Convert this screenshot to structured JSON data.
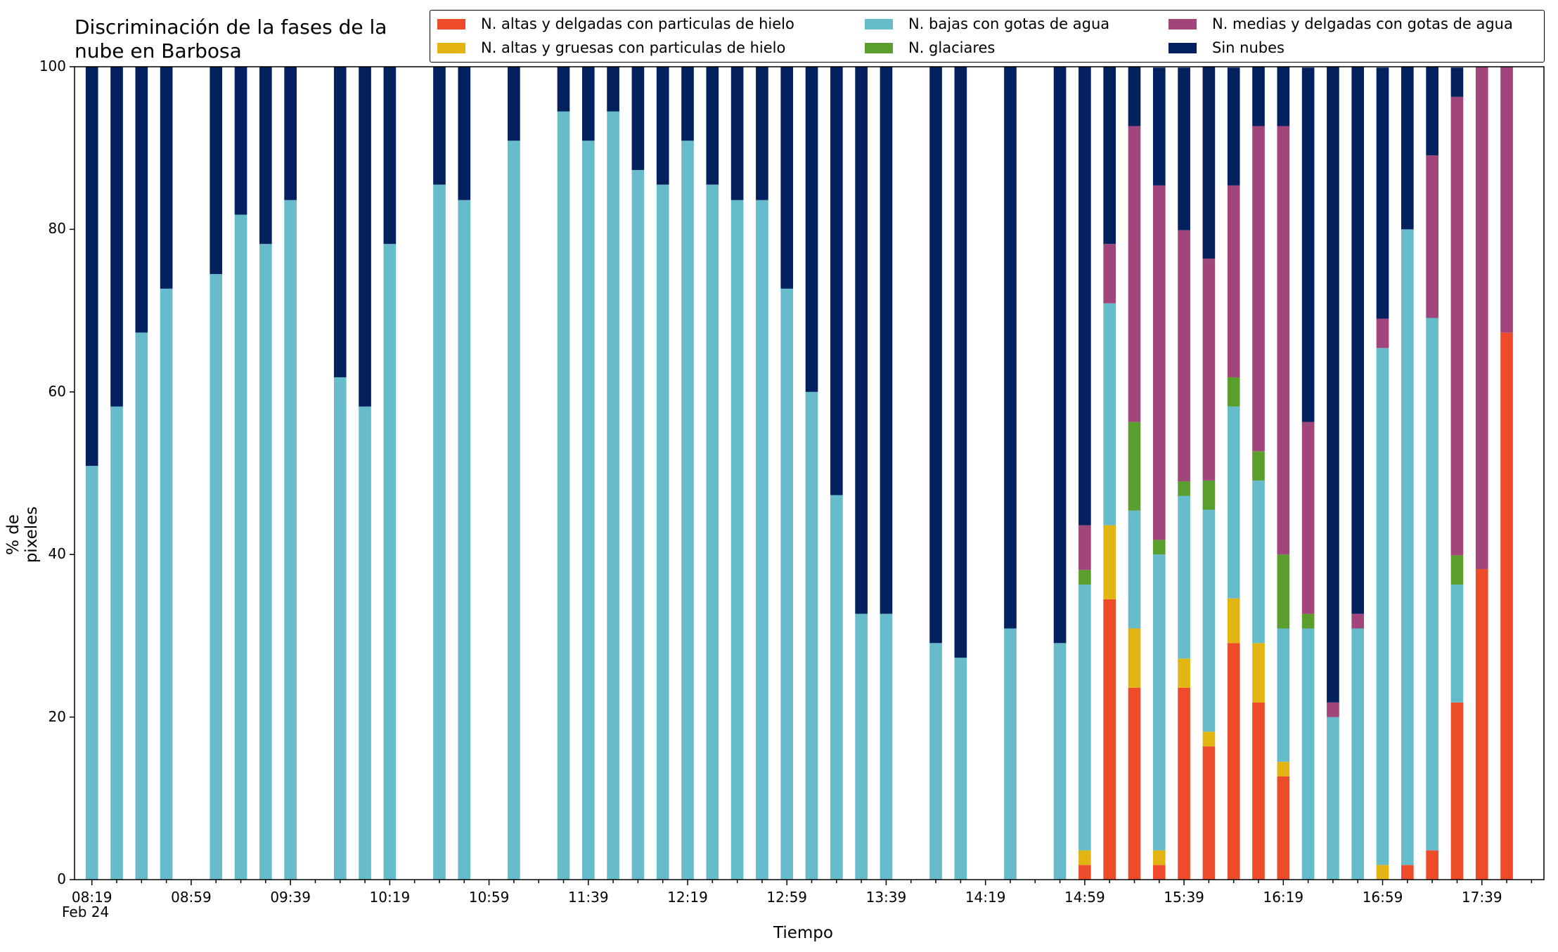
{
  "chart_data": {
    "type": "bar",
    "stacked": true,
    "title": "Discriminación de la fases de la nube en Barbosa",
    "title_lines": [
      "Discriminación de la fases de la",
      "nube en Barbosa"
    ],
    "xlabel": "Tiempo",
    "ylabel": "% de pixeles",
    "ylim": [
      0,
      100
    ],
    "yticks": [
      "0",
      "20",
      "40",
      "60",
      "80",
      "100"
    ],
    "xticks": [
      "08:19",
      "08:59",
      "09:39",
      "10:19",
      "10:59",
      "11:39",
      "12:19",
      "12:59",
      "13:39",
      "14:19",
      "14:59",
      "15:39",
      "16:19",
      "16:59",
      "17:39"
    ],
    "x_date_label": "Feb 24",
    "grid": false,
    "legend_position": "top-right",
    "x_interval_minutes": 10,
    "x": [
      "08:19",
      "08:29",
      "08:39",
      "08:49",
      "08:59",
      "09:09",
      "09:19",
      "09:29",
      "09:39",
      "09:49",
      "09:59",
      "10:09",
      "10:19",
      "10:29",
      "10:39",
      "10:49",
      "10:59",
      "11:09",
      "11:19",
      "11:29",
      "11:39",
      "11:49",
      "11:59",
      "12:09",
      "12:19",
      "12:29",
      "12:39",
      "12:49",
      "12:59",
      "13:09",
      "13:19",
      "13:29",
      "13:39",
      "13:49",
      "13:59",
      "14:09",
      "14:19",
      "14:29",
      "14:39",
      "14:49",
      "14:59",
      "15:09",
      "15:19",
      "15:29",
      "15:39",
      "15:49",
      "15:59",
      "16:09",
      "16:19",
      "16:29",
      "16:39",
      "16:49",
      "16:59",
      "17:09",
      "17:19",
      "17:29",
      "17:39",
      "17:49"
    ],
    "series": [
      {
        "name": "N. altas y delgadas con particulas de hielo",
        "color": "#ee4b2b",
        "values": [
          null,
          null,
          null,
          null,
          null,
          null,
          null,
          null,
          null,
          null,
          null,
          null,
          null,
          null,
          null,
          null,
          null,
          null,
          null,
          null,
          null,
          null,
          null,
          null,
          null,
          null,
          null,
          null,
          null,
          null,
          null,
          null,
          null,
          null,
          null,
          null,
          null,
          null,
          null,
          null,
          1.8,
          34.5,
          23.6,
          1.8,
          23.6,
          16.4,
          29.1,
          21.8,
          12.7,
          0,
          0,
          0,
          0,
          1.8,
          3.6,
          21.8,
          38.2,
          67.3
        ]
      },
      {
        "name": "N. altas y gruesas con particulas de hielo",
        "color": "#e3b513",
        "values": [
          null,
          null,
          null,
          null,
          null,
          null,
          null,
          null,
          null,
          null,
          null,
          null,
          null,
          null,
          null,
          null,
          null,
          null,
          null,
          null,
          null,
          null,
          null,
          null,
          null,
          null,
          null,
          null,
          null,
          null,
          null,
          null,
          null,
          null,
          null,
          null,
          null,
          null,
          null,
          null,
          1.8,
          9.1,
          7.3,
          1.8,
          3.6,
          1.8,
          5.5,
          7.3,
          1.8,
          0,
          0,
          0,
          1.8,
          0,
          0,
          0,
          0,
          0
        ]
      },
      {
        "name": "N. bajas con gotas de agua",
        "color": "#67bccb",
        "values": [
          50.9,
          58.2,
          67.3,
          72.7,
          null,
          74.5,
          81.8,
          78.2,
          83.6,
          null,
          61.8,
          58.2,
          78.2,
          null,
          85.5,
          83.6,
          null,
          90.9,
          null,
          94.5,
          90.9,
          94.5,
          87.3,
          85.5,
          90.9,
          85.5,
          83.6,
          83.6,
          72.7,
          60.0,
          47.3,
          32.7,
          32.7,
          null,
          29.1,
          27.3,
          null,
          30.9,
          null,
          29.1,
          32.7,
          27.3,
          14.5,
          36.4,
          20.0,
          27.3,
          23.6,
          20.0,
          16.4,
          30.9,
          20.0,
          30.9,
          63.6,
          78.2,
          65.5,
          14.5,
          0,
          0
        ]
      },
      {
        "name": "N. glaciares",
        "color": "#5a9f2d",
        "values": [
          null,
          null,
          null,
          null,
          null,
          null,
          null,
          null,
          null,
          null,
          null,
          null,
          null,
          null,
          null,
          null,
          null,
          null,
          null,
          null,
          null,
          null,
          null,
          null,
          null,
          null,
          null,
          null,
          null,
          null,
          null,
          null,
          null,
          null,
          null,
          null,
          null,
          null,
          null,
          null,
          1.8,
          0,
          10.9,
          1.8,
          1.8,
          3.6,
          3.6,
          3.6,
          9.1,
          1.8,
          0,
          0,
          0,
          0,
          0,
          3.6,
          0,
          0
        ]
      },
      {
        "name": "N. medias y delgadas con gotas de agua",
        "color": "#a2457b",
        "values": [
          null,
          null,
          null,
          null,
          null,
          null,
          null,
          null,
          null,
          null,
          null,
          null,
          null,
          null,
          null,
          null,
          null,
          null,
          null,
          null,
          null,
          null,
          null,
          null,
          null,
          null,
          null,
          null,
          null,
          null,
          null,
          null,
          null,
          null,
          null,
          null,
          null,
          null,
          null,
          null,
          5.5,
          7.3,
          36.4,
          43.6,
          30.9,
          27.3,
          23.6,
          40.0,
          52.7,
          23.6,
          1.8,
          1.8,
          3.6,
          0,
          20.0,
          56.4,
          61.8,
          32.7
        ]
      },
      {
        "name": "Sin nubes",
        "color": "#03205f",
        "values": [
          49.1,
          41.8,
          32.7,
          27.3,
          null,
          25.5,
          18.2,
          21.8,
          16.4,
          null,
          38.2,
          41.8,
          21.8,
          null,
          14.5,
          16.4,
          null,
          9.1,
          null,
          5.5,
          9.1,
          5.5,
          12.7,
          14.5,
          9.1,
          14.5,
          16.4,
          16.4,
          27.3,
          40.0,
          52.7,
          67.3,
          67.3,
          null,
          70.9,
          72.7,
          null,
          69.1,
          null,
          70.9,
          56.4,
          21.8,
          7.3,
          14.5,
          20.0,
          23.6,
          14.5,
          7.3,
          7.3,
          43.6,
          78.2,
          67.3,
          30.9,
          20.0,
          10.9,
          3.6,
          0,
          0
        ]
      }
    ]
  }
}
